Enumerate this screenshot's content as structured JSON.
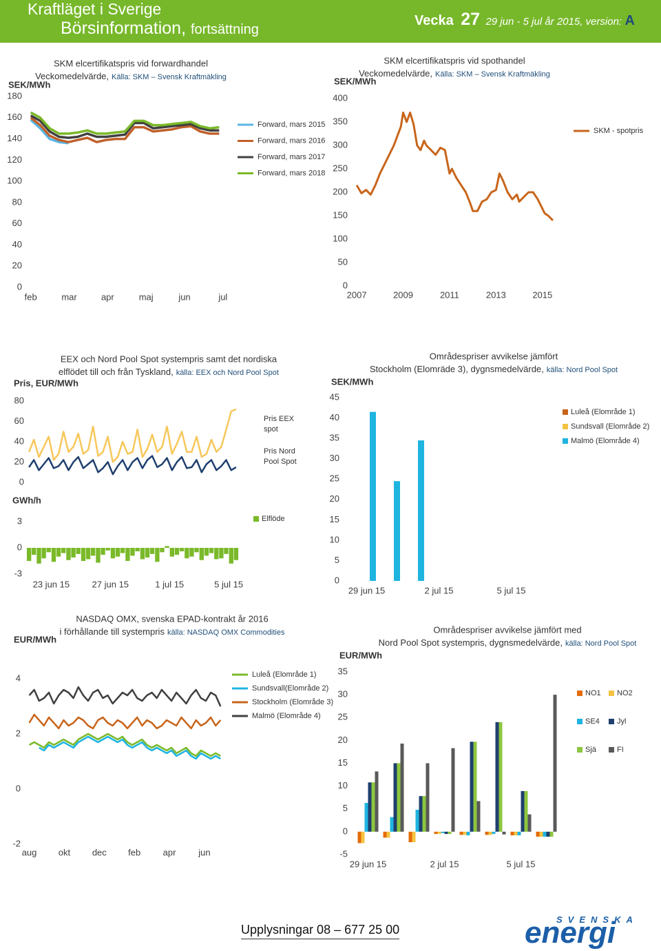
{
  "header": {
    "title": "Kraftläget i Sverige",
    "subtitle": "Börsinformation,",
    "subtitle_note": "fortsättning",
    "week_label": "Vecka",
    "week": 27,
    "period": "29 jun - 5 jul år 2015",
    "version_label": ", version:",
    "version": "A"
  },
  "footer": {
    "contact": "Upplysningar 08 – 677 25 00",
    "logo_top": "SVENSKA",
    "logo_bottom": "energi"
  },
  "chart_data": [
    {
      "type": "line",
      "title": "SKM elcertifikatspris vid forwardhandel",
      "subtitle": "Veckomedelvärde,",
      "source": "Källa: SKM – Svensk Kraftmäkling",
      "ylabel": "SEK/MWh",
      "ylim": [
        0,
        180
      ],
      "yticks": [
        0,
        20,
        40,
        60,
        80,
        100,
        120,
        140,
        160,
        180
      ],
      "xlim": [
        1.88,
        7.2
      ],
      "xticks": [
        {
          "value": 2,
          "label": "feb"
        },
        {
          "value": 3,
          "label": "mar"
        },
        {
          "value": 4,
          "label": "apr"
        },
        {
          "value": 5,
          "label": "maj"
        },
        {
          "value": 6,
          "label": "jun"
        },
        {
          "value": 7,
          "label": "jul"
        }
      ],
      "x": [
        2.0,
        2.245,
        2.49,
        2.735,
        2.98,
        3.225,
        3.47,
        3.715,
        3.96,
        4.205,
        4.45,
        4.695,
        4.94,
        5.185,
        5.43,
        5.675,
        5.92,
        6.165,
        6.41,
        6.655,
        6.9
      ],
      "series": [
        {
          "name": "Forward, mars 2015",
          "color": "#5bb6e3",
          "values": [
            158,
            150,
            140,
            137,
            136,
            null,
            null,
            null,
            null,
            null,
            null,
            null,
            null,
            null,
            null,
            null,
            null,
            null,
            null,
            null,
            null
          ]
        },
        {
          "name": "Forward, mars 2016",
          "color": "#c0602a",
          "values": [
            160,
            153,
            143,
            139,
            137,
            139,
            141,
            137,
            139,
            140,
            140,
            151,
            151,
            147,
            148,
            149,
            151,
            152,
            147,
            145,
            145
          ]
        },
        {
          "name": "Forward, mars 2017",
          "color": "#404040",
          "values": [
            162,
            157,
            147,
            142,
            141,
            142,
            145,
            142,
            142,
            143,
            144,
            155,
            155,
            150,
            151,
            152,
            153,
            154,
            150,
            148,
            148
          ]
        },
        {
          "name": "Forward, mars 2018",
          "color": "#7ab929",
          "values": [
            165,
            160,
            150,
            145,
            145,
            146,
            148,
            145,
            145,
            146,
            147,
            157,
            157,
            153,
            153,
            154,
            155,
            156,
            152,
            150,
            151
          ]
        }
      ]
    },
    {
      "type": "line",
      "title": "SKM elcertifikatspris vid spothandel",
      "subtitle": "Veckomedelvärde,",
      "source": "Källa: SKM – Svensk Kraftmäkling",
      "ylabel": "SEK/MWh",
      "ylim": [
        0,
        400
      ],
      "yticks": [
        0,
        50,
        100,
        150,
        200,
        250,
        300,
        350,
        400
      ],
      "xlim": [
        2006.7,
        2015.6
      ],
      "xticks": [
        2007,
        2009,
        2011,
        2013,
        2015
      ],
      "x": [
        2007.0,
        2007.2,
        2007.4,
        2007.6,
        2007.8,
        2008.0,
        2008.2,
        2008.4,
        2008.6,
        2008.75,
        2008.9,
        2009.0,
        2009.15,
        2009.3,
        2009.45,
        2009.6,
        2009.75,
        2009.9,
        2010.0,
        2010.2,
        2010.4,
        2010.6,
        2010.8,
        2011.0,
        2011.1,
        2011.3,
        2011.5,
        2011.7,
        2011.9,
        2012.0,
        2012.2,
        2012.4,
        2012.6,
        2012.8,
        2013.0,
        2013.15,
        2013.3,
        2013.5,
        2013.7,
        2013.9,
        2014.0,
        2014.2,
        2014.4,
        2014.6,
        2014.8,
        2015.0,
        2015.1,
        2015.25,
        2015.35,
        2015.45
      ],
      "series": [
        {
          "name": "SKM - spotpris",
          "color": "#c8651b",
          "values": [
            215,
            198,
            205,
            195,
            215,
            240,
            260,
            280,
            300,
            320,
            340,
            370,
            350,
            370,
            345,
            300,
            290,
            310,
            300,
            290,
            280,
            295,
            290,
            240,
            250,
            230,
            215,
            200,
            175,
            160,
            160,
            180,
            185,
            200,
            205,
            240,
            225,
            200,
            185,
            195,
            180,
            190,
            200,
            200,
            185,
            165,
            155,
            150,
            145,
            140
          ]
        }
      ]
    },
    {
      "type": "line",
      "title": "EEX och Nord Pool Spot systempris samt det nordiska",
      "subtitle": "elflödet till och från Tyskland,",
      "source": "källa: EEX och Nord Pool Spot",
      "ylabel": "Pris, EUR/MWh",
      "ylim": [
        0,
        80
      ],
      "yticks": [
        0,
        20,
        40,
        60,
        80
      ],
      "xlim": [
        21.4,
        35.6
      ],
      "x": [
        21.5,
        21.83,
        22.17,
        22.5,
        22.83,
        23.17,
        23.5,
        23.83,
        24.17,
        24.5,
        24.83,
        25.17,
        25.5,
        25.83,
        26.17,
        26.5,
        26.83,
        27.17,
        27.5,
        27.83,
        28.17,
        28.5,
        28.83,
        29.17,
        29.5,
        29.83,
        30.17,
        30.5,
        30.83,
        31.17,
        31.5,
        31.83,
        32.17,
        32.5,
        32.83,
        33.17,
        33.5,
        33.83,
        34.17,
        34.5,
        34.83,
        35.17,
        35.5
      ],
      "series": [
        {
          "name": "Pris EEX spot",
          "color": "#f7c75a",
          "values": [
            30,
            42,
            25,
            35,
            45,
            22,
            28,
            50,
            30,
            35,
            48,
            28,
            32,
            55,
            26,
            30,
            45,
            20,
            25,
            40,
            28,
            30,
            52,
            25,
            33,
            47,
            30,
            35,
            55,
            28,
            38,
            50,
            30,
            30,
            45,
            25,
            28,
            42,
            30,
            35,
            52,
            70,
            72
          ]
        },
        {
          "name": "Pris Nord Pool Spot",
          "color": "#1f3f6e",
          "values": [
            15,
            22,
            12,
            18,
            24,
            14,
            16,
            22,
            12,
            20,
            25,
            14,
            18,
            22,
            10,
            14,
            20,
            8,
            16,
            22,
            12,
            20,
            24,
            14,
            22,
            26,
            15,
            18,
            24,
            12,
            20,
            25,
            14,
            15,
            22,
            10,
            18,
            22,
            12,
            16,
            22,
            12,
            15
          ]
        }
      ]
    },
    {
      "type": "bar",
      "ylabel": "GWh/h",
      "ylim": [
        -3,
        3
      ],
      "yticks": [
        -3,
        0,
        3
      ],
      "xlim": [
        21.4,
        35.6
      ],
      "xticks": [
        {
          "value": 23,
          "label": "23 jun 15"
        },
        {
          "value": 27,
          "label": "27 jun 15"
        },
        {
          "value": 31,
          "label": "1 jul 15"
        },
        {
          "value": 35,
          "label": "5 jul 15"
        }
      ],
      "x": [
        21.5,
        21.83,
        22.17,
        22.5,
        22.83,
        23.17,
        23.5,
        23.83,
        24.17,
        24.5,
        24.83,
        25.17,
        25.5,
        25.83,
        26.17,
        26.5,
        26.83,
        27.17,
        27.5,
        27.83,
        28.17,
        28.5,
        28.83,
        29.17,
        29.5,
        29.83,
        30.17,
        30.5,
        30.83,
        31.17,
        31.5,
        31.83,
        32.17,
        32.5,
        32.83,
        33.17,
        33.5,
        33.83,
        34.17,
        34.5,
        34.83,
        35.17,
        35.5
      ],
      "series": [
        {
          "name": "Elflöde",
          "color": "#7ab929",
          "values": [
            -1.5,
            -0.8,
            -1.8,
            -1.2,
            -0.5,
            -1.6,
            -1.0,
            -0.6,
            -1.4,
            -1.1,
            -0.7,
            -1.5,
            -1.3,
            -0.9,
            -1.7,
            -0.8,
            -0.3,
            -1.2,
            -1.0,
            -0.6,
            -1.5,
            -0.9,
            -0.4,
            -1.3,
            -1.1,
            -0.7,
            -1.6,
            -0.5,
            0.2,
            -1.0,
            -0.8,
            -0.4,
            -1.2,
            -1.0,
            -0.5,
            -1.4,
            -0.9,
            -0.6,
            -1.3,
            -1.2,
            -0.7,
            -1.8,
            -1.4
          ]
        }
      ]
    },
    {
      "type": "bar",
      "title": "Områdespriser avvikelse jämfört",
      "subtitle": "Stockholm (Elomräde 3), dygnsmedelvärde,",
      "source": "källa: Nord Pool Spot",
      "ylabel": "SEK/MWh",
      "ylim": [
        0,
        45
      ],
      "yticks": [
        0,
        5,
        10,
        15,
        20,
        25,
        30,
        35,
        40,
        45
      ],
      "categories": [
        "29 jun 15",
        null,
        null,
        "2 jul 15",
        null,
        null,
        "5 jul 15",
        null
      ],
      "series": [
        {
          "name": "Luleå (Elområde 1)",
          "color": "#c8651b",
          "values": [
            0,
            0,
            0,
            null,
            null,
            null,
            null,
            null
          ]
        },
        {
          "name": "Sundsvall (Elområde 2)",
          "color": "#f5c342",
          "values": [
            0,
            0,
            0,
            null,
            null,
            null,
            null,
            null
          ]
        },
        {
          "name": "Malmö (Elområde 4)",
          "color": "#1fb4e0",
          "values": [
            41.5,
            24.5,
            34.5,
            null,
            null,
            null,
            null,
            null
          ]
        }
      ]
    },
    {
      "type": "line",
      "title": "NASDAQ OMX, svenska EPAD-kontrakt år 2016",
      "subtitle": "i förhållande till systempris",
      "source": "källa: NASDAQ OMX Commodities",
      "ylabel": "EUR/MWh",
      "ylim": [
        -2,
        5
      ],
      "yticks": [
        -2,
        0,
        2,
        4
      ],
      "xlim": [
        7.9,
        19.3
      ],
      "xticks": [
        {
          "value": 8,
          "label": "aug"
        },
        {
          "value": 10,
          "label": "okt"
        },
        {
          "value": 12,
          "label": "dec"
        },
        {
          "value": 14,
          "label": "feb"
        },
        {
          "value": 16,
          "label": "apr"
        },
        {
          "value": 18,
          "label": "jun"
        }
      ],
      "x": [
        8.0,
        8.28,
        8.56,
        8.84,
        9.12,
        9.4,
        9.68,
        9.96,
        10.24,
        10.52,
        10.8,
        11.08,
        11.36,
        11.64,
        11.92,
        12.2,
        12.48,
        12.76,
        13.04,
        13.32,
        13.6,
        13.88,
        14.16,
        14.44,
        14.72,
        15.0,
        15.28,
        15.56,
        15.84,
        16.12,
        16.4,
        16.68,
        16.96,
        17.24,
        17.52,
        17.8,
        18.08,
        18.36,
        18.64,
        18.92
      ],
      "series": [
        {
          "name": "Luleå (Elområde 1)",
          "color": "#7ab929",
          "values": [
            1.6,
            1.7,
            1.6,
            1.5,
            1.7,
            1.6,
            1.7,
            1.8,
            1.7,
            1.6,
            1.8,
            1.9,
            2.0,
            1.9,
            1.8,
            1.9,
            2.0,
            1.9,
            1.8,
            1.9,
            1.7,
            1.6,
            1.7,
            1.8,
            1.6,
            1.5,
            1.6,
            1.5,
            1.4,
            1.5,
            1.3,
            1.4,
            1.5,
            1.3,
            1.2,
            1.4,
            1.3,
            1.2,
            1.3,
            1.2
          ]
        },
        {
          "name": "Sundsvall(Elområde 2)",
          "color": "#1fb4e0",
          "values": [
            null,
            null,
            1.5,
            1.4,
            1.6,
            1.5,
            1.6,
            1.7,
            1.6,
            1.5,
            1.7,
            1.8,
            1.9,
            1.8,
            1.7,
            1.8,
            1.9,
            1.8,
            1.7,
            1.8,
            1.6,
            1.5,
            1.6,
            1.7,
            1.5,
            1.4,
            1.5,
            1.4,
            1.3,
            1.4,
            1.2,
            1.3,
            1.4,
            1.2,
            1.1,
            1.3,
            1.2,
            1.1,
            1.2,
            1.1
          ]
        },
        {
          "name": "Stockholm (Elområde 3)",
          "color": "#c8651b",
          "values": [
            2.4,
            2.7,
            2.5,
            2.3,
            2.6,
            2.4,
            2.2,
            2.5,
            2.3,
            2.4,
            2.6,
            2.5,
            2.3,
            2.2,
            2.5,
            2.6,
            2.4,
            2.3,
            2.5,
            2.4,
            2.2,
            2.4,
            2.6,
            2.3,
            2.5,
            2.4,
            2.2,
            2.3,
            2.5,
            2.4,
            2.3,
            2.6,
            2.4,
            2.2,
            2.5,
            2.3,
            2.4,
            2.6,
            2.3,
            2.5
          ]
        },
        {
          "name": "Malmö (Elområde 4)",
          "color": "#404040",
          "values": [
            3.4,
            3.6,
            3.2,
            3.3,
            3.5,
            3.1,
            3.4,
            3.6,
            3.5,
            3.3,
            3.7,
            3.4,
            3.2,
            3.5,
            3.6,
            3.3,
            3.4,
            3.1,
            3.3,
            3.5,
            3.4,
            3.6,
            3.3,
            3.2,
            3.4,
            3.5,
            3.3,
            3.6,
            3.4,
            3.2,
            3.5,
            3.3,
            3.1,
            3.4,
            3.6,
            3.3,
            3.2,
            3.5,
            3.4,
            3.0
          ]
        }
      ]
    },
    {
      "type": "bar",
      "title": "Områdespriser avvikelse jämfört med",
      "subtitle": "Nord Pool Spot systempris, dygnsmedelvärde,",
      "source": "källa: Nord Pool Spot",
      "ylabel": "EUR/MWh",
      "ylim": [
        -5,
        35
      ],
      "yticks": [
        -5,
        0,
        5,
        10,
        15,
        20,
        25,
        30,
        35
      ],
      "categories": [
        "29 jun 15",
        null,
        null,
        "2 jul 15",
        null,
        null,
        "5 jul 15",
        null
      ],
      "series": [
        {
          "name": "NO1",
          "color": "#e46c0a",
          "values": [
            -2.5,
            -1.3,
            -2.3,
            -0.5,
            -0.7,
            -0.7,
            -0.8,
            -1.1
          ]
        },
        {
          "name": "NO2",
          "color": "#f5c342",
          "values": [
            -2.5,
            -1.3,
            -2.3,
            -0.5,
            -0.7,
            -0.7,
            -0.8,
            -1.1
          ]
        },
        {
          "name": "SE4",
          "color": "#1fb4e0",
          "values": [
            6.3,
            3.2,
            4.8,
            -0.3,
            -0.8,
            -0.5,
            -0.8,
            -1.1
          ]
        },
        {
          "name": "Jyl",
          "color": "#1f3f6e",
          "values": [
            10.8,
            15,
            7.8,
            -0.5,
            19.7,
            24,
            8.9,
            -1.1
          ]
        },
        {
          "name": "Sjä",
          "color": "#8dc63f",
          "values": [
            10.8,
            15,
            7.8,
            -0.5,
            19.7,
            24,
            8.9,
            -1.1
          ]
        },
        {
          "name": "FI",
          "color": "#595959",
          "values": [
            13.2,
            19.3,
            15,
            18.3,
            6.7,
            -0.6,
            3.8,
            30
          ]
        }
      ]
    }
  ]
}
